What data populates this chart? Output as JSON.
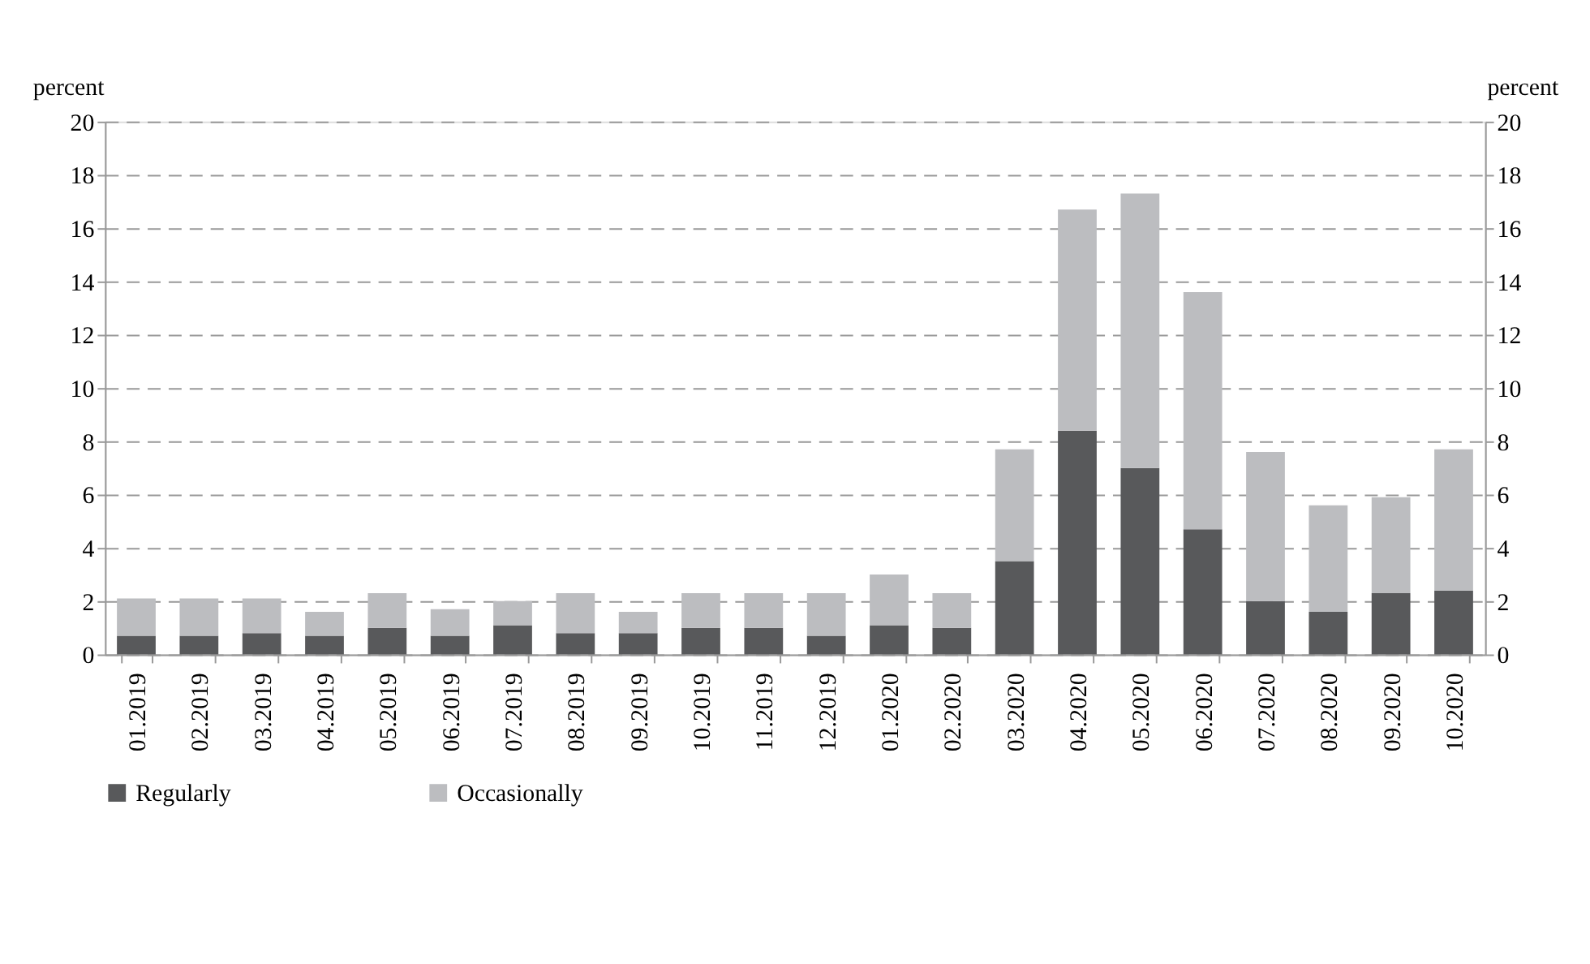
{
  "chart_data": {
    "type": "bar",
    "stacked": true,
    "ylabel": "percent",
    "y2label": "percent",
    "categories": [
      "01.2019",
      "02.2019",
      "03.2019",
      "04.2019",
      "05.2019",
      "06.2019",
      "07.2019",
      "08.2019",
      "09.2019",
      "10.2019",
      "11.2019",
      "12.2019",
      "01.2020",
      "02.2020",
      "03.2020",
      "04.2020",
      "05.2020",
      "06.2020",
      "07.2020",
      "08.2020",
      "09.2020",
      "10.2020"
    ],
    "series": [
      {
        "name": "Regularly",
        "color": "#58595b",
        "values": [
          0.7,
          0.7,
          0.8,
          0.7,
          1.0,
          0.7,
          1.1,
          0.8,
          0.8,
          1.0,
          1.0,
          0.7,
          1.1,
          1.0,
          3.5,
          8.4,
          7.0,
          4.7,
          2.0,
          1.6,
          2.3,
          2.4
        ]
      },
      {
        "name": "Occasionally",
        "color": "#bcbdc0",
        "values": [
          1.4,
          1.4,
          1.3,
          0.9,
          1.3,
          1.0,
          0.9,
          1.5,
          0.8,
          1.3,
          1.3,
          1.6,
          1.9,
          1.3,
          4.2,
          8.3,
          10.3,
          8.9,
          5.6,
          4.0,
          3.6,
          5.3
        ]
      }
    ],
    "ylim": [
      0,
      20
    ],
    "yticks": [
      0,
      2,
      4,
      6,
      8,
      10,
      12,
      14,
      16,
      18,
      20
    ],
    "y2lim": [
      0,
      20
    ],
    "y2ticks": [
      0,
      2,
      4,
      6,
      8,
      10,
      12,
      14,
      16,
      18,
      20
    ],
    "grid": "y",
    "legend": "bottom"
  }
}
